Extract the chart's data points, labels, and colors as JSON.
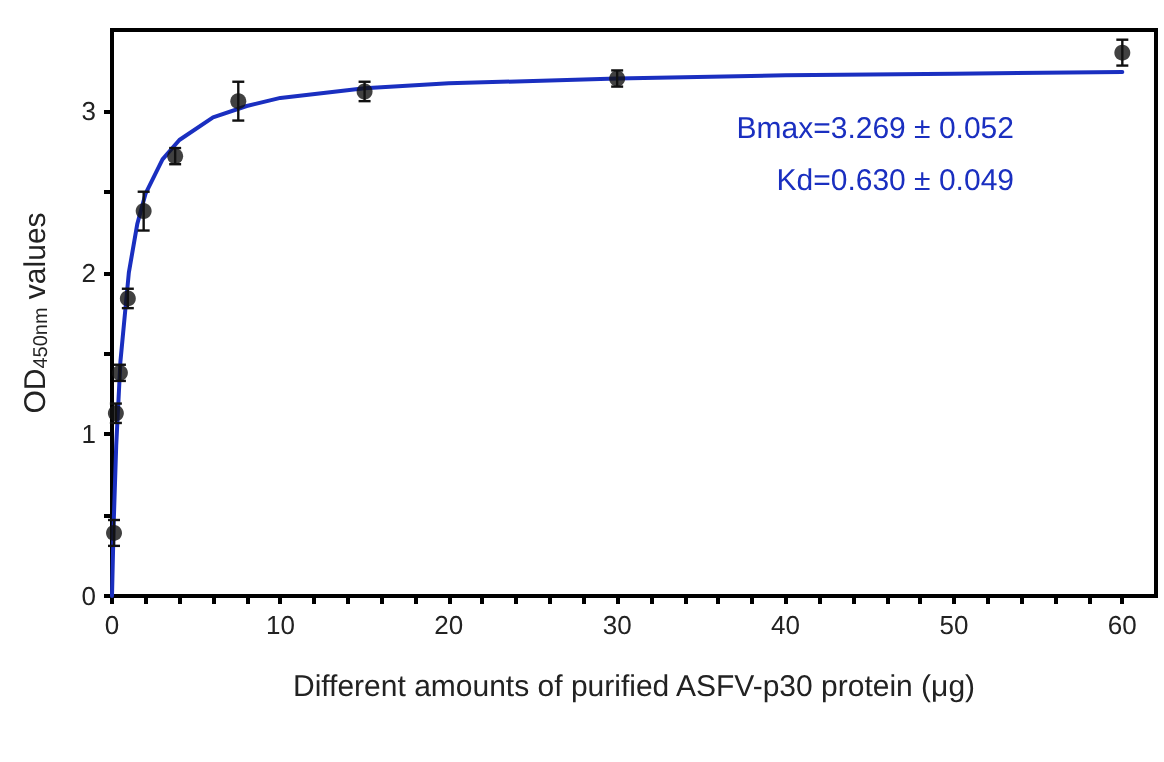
{
  "chart_data": {
    "type": "scatter",
    "xlabel": "Different amounts of purified ASFV-p30 protein (μg)",
    "ylabel": "OD$_{450nm}$ values",
    "xlim": [
      0,
      62
    ],
    "ylim": [
      0,
      3.5
    ],
    "xticks": [
      0,
      {
        "value": 2,
        "label": null
      },
      {
        "value": 4,
        "label": null
      },
      {
        "value": 6,
        "label": null
      },
      {
        "value": 8,
        "label": null
      },
      10,
      {
        "value": 12,
        "label": null
      },
      {
        "value": 14,
        "label": null
      },
      {
        "value": 16,
        "label": null
      },
      {
        "value": 18,
        "label": null
      },
      20,
      {
        "value": 22,
        "label": null
      },
      {
        "value": 24,
        "label": null
      },
      {
        "value": 26,
        "label": null
      },
      {
        "value": 28,
        "label": null
      },
      30,
      {
        "value": 32,
        "label": null
      },
      {
        "value": 34,
        "label": null
      },
      {
        "value": 36,
        "label": null
      },
      {
        "value": 38,
        "label": null
      },
      40,
      {
        "value": 42,
        "label": null
      },
      {
        "value": 44,
        "label": null
      },
      {
        "value": 46,
        "label": null
      },
      {
        "value": 48,
        "label": null
      },
      50,
      {
        "value": 52,
        "label": null
      },
      {
        "value": 54,
        "label": null
      },
      {
        "value": 56,
        "label": null
      },
      {
        "value": 58,
        "label": null
      },
      60
    ],
    "yticks": [
      0,
      {
        "value": 0.5,
        "label": null
      },
      1,
      {
        "value": 1.5,
        "label": null
      },
      2,
      {
        "value": 2.5,
        "label": null
      },
      3
    ],
    "grid": false,
    "marker": "circle",
    "series": [
      {
        "type": "scatter",
        "color": "#111111",
        "x": [
          0.12,
          0.23,
          0.47,
          0.94,
          1.88,
          3.75,
          7.5,
          15,
          30,
          60
        ],
        "values": [
          0.39,
          1.13,
          1.38,
          1.84,
          2.38,
          2.72,
          3.06,
          3.12,
          3.2,
          3.36
        ],
        "errors": [
          0.08,
          0.06,
          0.05,
          0.06,
          0.12,
          0.05,
          0.12,
          0.06,
          0.05,
          0.08
        ]
      },
      {
        "type": "line",
        "color": "#1a2fc0",
        "marker": "none",
        "line_style": "solid",
        "x": [
          0,
          0.1,
          0.25,
          0.5,
          1,
          1.5,
          2,
          3,
          4,
          6,
          8,
          10,
          15,
          20,
          30,
          40,
          50,
          60
        ],
        "values": [
          0,
          0.45,
          0.93,
          1.45,
          2.0,
          2.3,
          2.49,
          2.7,
          2.82,
          2.96,
          3.03,
          3.08,
          3.14,
          3.17,
          3.2,
          3.22,
          3.23,
          3.24
        ]
      }
    ],
    "annotations": [
      "Bmax=3.269 ± 0.052",
      "Kd=0.630 ± 0.049"
    ]
  }
}
